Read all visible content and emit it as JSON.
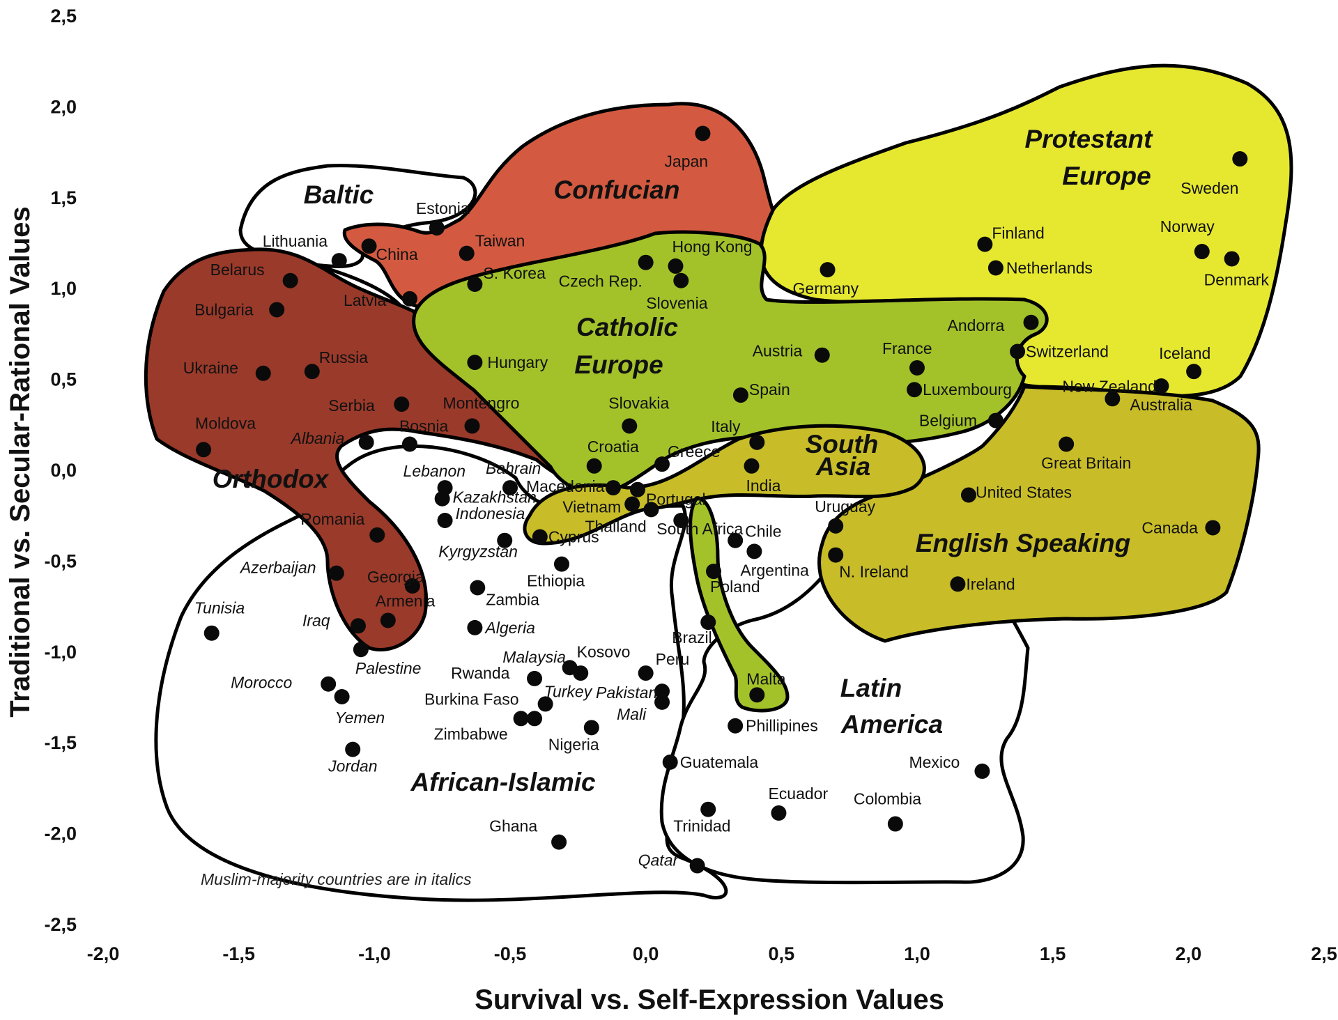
{
  "chart_data": {
    "type": "scatter",
    "xlabel": "Survival vs. Self-Expression Values",
    "ylabel": "Traditional vs. Secular-Rational Values",
    "xlim": [
      -2.0,
      2.5
    ],
    "ylim": [
      -2.5,
      2.5
    ],
    "x_ticks": [
      "-2,0",
      "-1,5",
      "-1,0",
      "-0,5",
      "0,0",
      "0,5",
      "1,0",
      "1,5",
      "2,0",
      "2,5"
    ],
    "y_ticks": [
      "2,5",
      "2,0",
      "1,5",
      "1,0",
      "0,5",
      "0,0",
      "-0,5",
      "-1,0",
      "-1,5",
      "-2,0",
      "-2,5"
    ],
    "grid": false,
    "legend": "none",
    "note": "Muslim-majority countries are in italics",
    "zone_colors": {
      "african_islamic": "#ffffff",
      "latin_america": "#ffffff",
      "baltic": "#ffffff",
      "confucian": "#d35a40",
      "protestant_europe": "#e6e830",
      "catholic_europe": "#a3c22a",
      "orthodox": "#9a3a2a",
      "english_speaking": "#c8bd28",
      "south_asia": "#c8bd28"
    },
    "regions": [
      {
        "name": "Baltic",
        "lines": [
          "Baltic"
        ]
      },
      {
        "name": "Confucian",
        "lines": [
          "Confucian"
        ]
      },
      {
        "name": "Protestant Europe",
        "lines": [
          "Protestant",
          "Europe"
        ]
      },
      {
        "name": "Catholic Europe",
        "lines": [
          "Catholic",
          "Europe"
        ]
      },
      {
        "name": "Orthodox",
        "lines": [
          "Orthodox"
        ]
      },
      {
        "name": "South Asia",
        "lines": [
          "South",
          "Asia"
        ]
      },
      {
        "name": "English Speaking",
        "lines": [
          "English Speaking"
        ]
      },
      {
        "name": "Latin America",
        "lines": [
          "Latin",
          "America"
        ]
      },
      {
        "name": "African-Islamic",
        "lines": [
          "African-Islamic"
        ]
      }
    ],
    "points": [
      {
        "label": "Japan",
        "x": 0.21,
        "y": 1.85,
        "italic": false
      },
      {
        "label": "Sweden",
        "x": 2.19,
        "y": 1.71,
        "italic": false
      },
      {
        "label": "Estonia",
        "x": -0.77,
        "y": 1.33,
        "italic": false
      },
      {
        "label": "China",
        "x": -1.02,
        "y": 1.23,
        "italic": false
      },
      {
        "label": "Taiwan",
        "x": -0.66,
        "y": 1.19,
        "italic": false
      },
      {
        "label": "Lithuania",
        "x": -1.13,
        "y": 1.15,
        "italic": false
      },
      {
        "label": "S. Korea",
        "x": -0.63,
        "y": 1.02,
        "italic": false
      },
      {
        "label": "Latvia",
        "x": -0.87,
        "y": 0.94,
        "italic": false
      },
      {
        "label": "Belarus",
        "x": -1.31,
        "y": 1.04,
        "italic": false
      },
      {
        "label": "Bulgaria",
        "x": -1.36,
        "y": 0.88,
        "italic": false
      },
      {
        "label": "Hong Kong",
        "x": 0.11,
        "y": 1.12,
        "italic": false
      },
      {
        "label": "Czech Rep.",
        "x": 0.0,
        "y": 1.14,
        "italic": false
      },
      {
        "label": "Slovenia",
        "x": 0.13,
        "y": 1.04,
        "italic": false
      },
      {
        "label": "Finland",
        "x": 1.25,
        "y": 1.24,
        "italic": false
      },
      {
        "label": "Netherlands",
        "x": 1.29,
        "y": 1.11,
        "italic": false
      },
      {
        "label": "Norway",
        "x": 2.05,
        "y": 1.2,
        "italic": false
      },
      {
        "label": "Denmark",
        "x": 2.16,
        "y": 1.16,
        "italic": false
      },
      {
        "label": "Germany",
        "x": 0.67,
        "y": 1.1,
        "italic": false
      },
      {
        "label": "Andorra",
        "x": 1.42,
        "y": 0.81,
        "italic": false
      },
      {
        "label": "Switzerland",
        "x": 1.37,
        "y": 0.65,
        "italic": false
      },
      {
        "label": "Iceland",
        "x": 2.02,
        "y": 0.54,
        "italic": false
      },
      {
        "label": "Austria",
        "x": 0.65,
        "y": 0.63,
        "italic": false
      },
      {
        "label": "France",
        "x": 1.0,
        "y": 0.56,
        "italic": false
      },
      {
        "label": "Luxembourg",
        "x": 0.99,
        "y": 0.44,
        "italic": false
      },
      {
        "label": "Hungary",
        "x": -0.63,
        "y": 0.59,
        "italic": false
      },
      {
        "label": "Ukraine",
        "x": -1.41,
        "y": 0.53,
        "italic": false
      },
      {
        "label": "Russia",
        "x": -1.23,
        "y": 0.54,
        "italic": false
      },
      {
        "label": "Spain",
        "x": 0.35,
        "y": 0.41,
        "italic": false
      },
      {
        "label": "Serbia",
        "x": -0.9,
        "y": 0.36,
        "italic": false
      },
      {
        "label": "Montengro",
        "x": -0.64,
        "y": 0.24,
        "italic": false
      },
      {
        "label": "Slovakia",
        "x": -0.06,
        "y": 0.24,
        "italic": false
      },
      {
        "label": "Belgium",
        "x": 1.29,
        "y": 0.27,
        "italic": false
      },
      {
        "label": "Australia",
        "x": 1.9,
        "y": 0.46,
        "italic": false
      },
      {
        "label": "New Zealand",
        "x": 1.72,
        "y": 0.39,
        "italic": false
      },
      {
        "label": "Moldova",
        "x": -1.63,
        "y": 0.11,
        "italic": false
      },
      {
        "label": "Albania",
        "x": -1.03,
        "y": 0.15,
        "italic": true
      },
      {
        "label": "Bosnia",
        "x": -0.87,
        "y": 0.14,
        "italic": false
      },
      {
        "label": "Italy",
        "x": 0.41,
        "y": 0.15,
        "italic": false
      },
      {
        "label": "Great Britain",
        "x": 1.55,
        "y": 0.14,
        "italic": false
      },
      {
        "label": "Croatia",
        "x": -0.19,
        "y": 0.02,
        "italic": false
      },
      {
        "label": "Greece",
        "x": 0.06,
        "y": 0.03,
        "italic": false
      },
      {
        "label": "India",
        "x": 0.39,
        "y": 0.02,
        "italic": false
      },
      {
        "label": "Lebanon",
        "x": -0.74,
        "y": -0.1,
        "italic": true
      },
      {
        "label": "Bahrain",
        "x": -0.5,
        "y": -0.1,
        "italic": true
      },
      {
        "label": "Macedonia",
        "x": -0.12,
        "y": -0.1,
        "italic": false
      },
      {
        "label": "Portugal",
        "x": -0.03,
        "y": -0.11,
        "italic": false
      },
      {
        "label": "Kazakhstan",
        "x": -0.75,
        "y": -0.16,
        "italic": true
      },
      {
        "label": "United States",
        "x": 1.19,
        "y": -0.14,
        "italic": false
      },
      {
        "label": "Vietnam",
        "x": -0.05,
        "y": -0.19,
        "italic": false
      },
      {
        "label": "Thailand",
        "x": 0.02,
        "y": -0.22,
        "italic": false
      },
      {
        "label": "Indonesia",
        "x": -0.74,
        "y": -0.28,
        "italic": true
      },
      {
        "label": "South Africa",
        "x": 0.13,
        "y": -0.28,
        "italic": false
      },
      {
        "label": "Uruguay",
        "x": 0.7,
        "y": -0.31,
        "italic": false
      },
      {
        "label": "Canada",
        "x": 2.09,
        "y": -0.32,
        "italic": false
      },
      {
        "label": "Cyprus",
        "x": -0.39,
        "y": -0.37,
        "italic": false
      },
      {
        "label": "Romania",
        "x": -0.99,
        "y": -0.36,
        "italic": false
      },
      {
        "label": "Kyrgyzstan",
        "x": -0.52,
        "y": -0.39,
        "italic": true
      },
      {
        "label": "Chile",
        "x": 0.33,
        "y": -0.39,
        "italic": false
      },
      {
        "label": "Argentina",
        "x": 0.4,
        "y": -0.45,
        "italic": false
      },
      {
        "label": "N. Ireland",
        "x": 0.7,
        "y": -0.47,
        "italic": false
      },
      {
        "label": "Ethiopia",
        "x": -0.31,
        "y": -0.52,
        "italic": false
      },
      {
        "label": "Azerbaijan",
        "x": -1.14,
        "y": -0.57,
        "italic": true
      },
      {
        "label": "Poland",
        "x": 0.25,
        "y": -0.56,
        "italic": false
      },
      {
        "label": "Georgia",
        "x": -0.86,
        "y": -0.64,
        "italic": false
      },
      {
        "label": "Zambia",
        "x": -0.62,
        "y": -0.65,
        "italic": false
      },
      {
        "label": "Ireland",
        "x": 1.15,
        "y": -0.63,
        "italic": false
      },
      {
        "label": "Armenia",
        "x": -0.95,
        "y": -0.83,
        "italic": false
      },
      {
        "label": "Tunisia",
        "x": -1.6,
        "y": -0.9,
        "italic": true
      },
      {
        "label": "Iraq",
        "x": -1.06,
        "y": -0.86,
        "italic": true
      },
      {
        "label": "Algeria",
        "x": -0.63,
        "y": -0.87,
        "italic": true
      },
      {
        "label": "Brazil",
        "x": 0.23,
        "y": -0.84,
        "italic": false
      },
      {
        "label": "Palestine",
        "x": -1.05,
        "y": -0.99,
        "italic": true
      },
      {
        "label": "Kosovo",
        "x": -0.28,
        "y": -1.09,
        "italic": false
      },
      {
        "label": "Malaysia",
        "x": -0.24,
        "y": -1.12,
        "italic": true
      },
      {
        "label": "Peru",
        "x": 0.0,
        "y": -1.12,
        "italic": false
      },
      {
        "label": "Rwanda",
        "x": -0.41,
        "y": -1.15,
        "italic": false
      },
      {
        "label": "Morocco",
        "x": -1.17,
        "y": -1.18,
        "italic": true
      },
      {
        "label": "Turkey",
        "x": -0.37,
        "y": -1.29,
        "italic": true
      },
      {
        "label": "Pakistan",
        "x": 0.06,
        "y": -1.22,
        "italic": true
      },
      {
        "label": "Mali",
        "x": 0.06,
        "y": -1.28,
        "italic": true
      },
      {
        "label": "Yemen",
        "x": -1.12,
        "y": -1.25,
        "italic": true
      },
      {
        "label": "Malta",
        "x": 0.41,
        "y": -1.24,
        "italic": false
      },
      {
        "label": "Burkina Faso",
        "x": -0.41,
        "y": -1.37,
        "italic": false
      },
      {
        "label": "Nigeria",
        "x": -0.2,
        "y": -1.42,
        "italic": false
      },
      {
        "label": "Phillipines",
        "x": 0.33,
        "y": -1.41,
        "italic": false
      },
      {
        "label": "Jordan",
        "x": -1.08,
        "y": -1.54,
        "italic": true
      },
      {
        "label": "Zimbabwe",
        "x": -0.46,
        "y": -1.37,
        "italic": false
      },
      {
        "label": "Guatemala",
        "x": 0.09,
        "y": -1.61,
        "italic": false
      },
      {
        "label": "Mexico",
        "x": 1.24,
        "y": -1.66,
        "italic": false
      },
      {
        "label": "Trinidad",
        "x": 0.23,
        "y": -1.87,
        "italic": false
      },
      {
        "label": "Ecuador",
        "x": 0.49,
        "y": -1.89,
        "italic": false
      },
      {
        "label": "Colombia",
        "x": 0.92,
        "y": -1.95,
        "italic": false
      },
      {
        "label": "Ghana",
        "x": -0.32,
        "y": -2.05,
        "italic": false
      },
      {
        "label": "Qatar",
        "x": 0.19,
        "y": -2.18,
        "italic": true
      }
    ]
  }
}
